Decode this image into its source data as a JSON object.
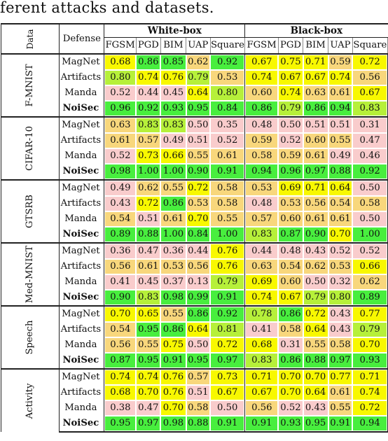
{
  "caption": "ferent attacks and datasets.",
  "header": {
    "data_label": "Data",
    "defense_label": "Defense",
    "white_box": "White-box",
    "black_box": "Black-box",
    "attacks": [
      "FGSM",
      "PGD",
      "BIM",
      "UAP",
      "Square"
    ]
  },
  "colors": {
    "pink": "#f9cccc",
    "orange": "#f8d77c",
    "yellow": "#f8f800",
    "lime": "#b6f03a",
    "green": "#48ee3e"
  },
  "sections": [
    {
      "dataset": "F-MNIST",
      "rows": [
        {
          "defense": "MagNet",
          "values": [
            "0.68",
            "0.86",
            "0.85",
            "0.62",
            "0.92",
            "0.67",
            "0.75",
            "0.71",
            "0.59",
            "0.72"
          ]
        },
        {
          "defense": "Artifacts",
          "values": [
            "0.80",
            "0.74",
            "0.76",
            "0.79",
            "0.53",
            "0.74",
            "0.67",
            "0.67",
            "0.74",
            "0.56"
          ]
        },
        {
          "defense": "Manda",
          "values": [
            "0.52",
            "0.44",
            "0.45",
            "0.64",
            "0.80",
            "0.60",
            "0.74",
            "0.63",
            "0.61",
            "0.67"
          ]
        },
        {
          "defense": "NoiSec",
          "values": [
            "0.96",
            "0.92",
            "0.93",
            "0.95",
            "0.84",
            "0.86",
            "0.79",
            "0.86",
            "0.94",
            "0.83"
          ]
        }
      ]
    },
    {
      "dataset": "CIFAR-10",
      "rows": [
        {
          "defense": "MagNet",
          "values": [
            "0.63",
            "0.83",
            "0.83",
            "0.50",
            "0.35",
            "0.48",
            "0.50",
            "0.51",
            "0.51",
            "0.31"
          ]
        },
        {
          "defense": "Artifacts",
          "values": [
            "0.61",
            "0.57",
            "0.49",
            "0.51",
            "0.52",
            "0.59",
            "0.52",
            "0.60",
            "0.55",
            "0.47"
          ]
        },
        {
          "defense": "Manda",
          "values": [
            "0.52",
            "0.73",
            "0.66",
            "0.55",
            "0.61",
            "0.58",
            "0.59",
            "0.61",
            "0.49",
            "0.46"
          ]
        },
        {
          "defense": "NoiSec",
          "values": [
            "0.98",
            "1.00",
            "1.00",
            "0.90",
            "0.91",
            "0.94",
            "0.96",
            "0.97",
            "0.88",
            "0.92"
          ]
        }
      ]
    },
    {
      "dataset": "GTSRB",
      "rows": [
        {
          "defense": "MagNet",
          "values": [
            "0.49",
            "0.62",
            "0.55",
            "0.72",
            "0.58",
            "0.53",
            "0.69",
            "0.71",
            "0.64",
            "0.50"
          ]
        },
        {
          "defense": "Artifacts",
          "values": [
            "0.43",
            "0.72",
            "0.86",
            "0.53",
            "0.58",
            "0.48",
            "0.53",
            "0.56",
            "0.54",
            "0.58"
          ]
        },
        {
          "defense": "Manda",
          "values": [
            "0.54",
            "0.51",
            "0.61",
            "0.70",
            "0.55",
            "0.57",
            "0.60",
            "0.61",
            "0.61",
            "0.50"
          ]
        },
        {
          "defense": "NoiSec",
          "values": [
            "0.89",
            "0.88",
            "1.00",
            "0.84",
            "1.00",
            "0.83",
            "0.87",
            "0.90",
            "0.70",
            "1.00"
          ]
        }
      ]
    },
    {
      "dataset": "Med-MNIST",
      "rows": [
        {
          "defense": "MagNet",
          "values": [
            "0.36",
            "0.47",
            "0.36",
            "0.44",
            "0.76",
            "0.44",
            "0.48",
            "0.43",
            "0.52",
            "0.52"
          ]
        },
        {
          "defense": "Artifacts",
          "values": [
            "0.56",
            "0.61",
            "0.53",
            "0.56",
            "0.76",
            "0.63",
            "0.54",
            "0.62",
            "0.53",
            "0.66"
          ]
        },
        {
          "defense": "Manda",
          "values": [
            "0.41",
            "0.45",
            "0.37",
            "0.13",
            "0.79",
            "0.69",
            "0.60",
            "0.50",
            "0.32",
            "0.62"
          ]
        },
        {
          "defense": "NoiSec",
          "values": [
            "0.90",
            "0.83",
            "0.98",
            "0.99",
            "0.91",
            "0.74",
            "0.67",
            "0.79",
            "0.80",
            "0.89"
          ]
        }
      ]
    },
    {
      "dataset": "Speech",
      "rows": [
        {
          "defense": "MagNet",
          "values": [
            "0.70",
            "0.65",
            "0.55",
            "0.86",
            "0.92",
            "0.78",
            "0.86",
            "0.72",
            "0.43",
            "0.77"
          ]
        },
        {
          "defense": "Artifacts",
          "values": [
            "0.54",
            "0.95",
            "0.86",
            "0.64",
            "0.81",
            "0.41",
            "0.58",
            "0.64",
            "0.43",
            "0.79"
          ]
        },
        {
          "defense": "Manda",
          "values": [
            "0.56",
            "0.55",
            "0.75",
            "0.50",
            "0.72",
            "0.68",
            "0.31",
            "0.55",
            "0.58",
            "0.70"
          ]
        },
        {
          "defense": "NoiSec",
          "values": [
            "0.87",
            "0.95",
            "0.91",
            "0.95",
            "0.97",
            "0.83",
            "0.86",
            "0.88",
            "0.97",
            "0.93"
          ]
        }
      ]
    },
    {
      "dataset": "Activity",
      "rows": [
        {
          "defense": "MagNet",
          "values": [
            "0.74",
            "0.74",
            "0.76",
            "0.57",
            "0.73",
            "0.71",
            "0.70",
            "0.70",
            "0.77",
            "0.71"
          ]
        },
        {
          "defense": "Artifacts",
          "values": [
            "0.68",
            "0.70",
            "0.76",
            "0.51",
            "0.67",
            "0.67",
            "0.70",
            "0.64",
            "0.61",
            "0.74"
          ]
        },
        {
          "defense": "Manda",
          "values": [
            "0.38",
            "0.47",
            "0.70",
            "0.58",
            "0.50",
            "0.56",
            "0.52",
            "0.43",
            "0.55",
            "0.72"
          ]
        },
        {
          "defense": "NoiSec",
          "values": [
            "0.95",
            "0.97",
            "0.98",
            "0.88",
            "0.91",
            "0.91",
            "0.93",
            "0.95",
            "0.91",
            "0.94"
          ]
        }
      ]
    }
  ]
}
